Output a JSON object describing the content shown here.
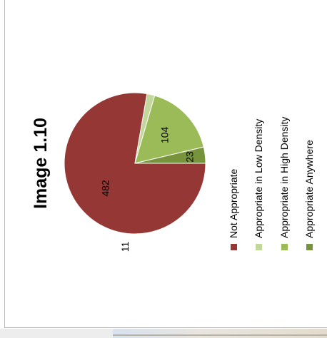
{
  "chart_data": {
    "type": "pie",
    "title": "Image 1.10",
    "rotation_deg": -90,
    "start_angle_deg": 270,
    "categories": [
      "Not Appropriate",
      "Appropriate in Low Density",
      "Appropriate in High Density",
      "Appropriate Anywhere"
    ],
    "values": [
      482,
      11,
      104,
      23
    ],
    "colors": [
      "#953735",
      "#c3d69b",
      "#9bbb59",
      "#77933c"
    ],
    "legend_position": "bottom (rotated)",
    "data_labels": [
      "482",
      "11",
      "104",
      "23"
    ]
  }
}
